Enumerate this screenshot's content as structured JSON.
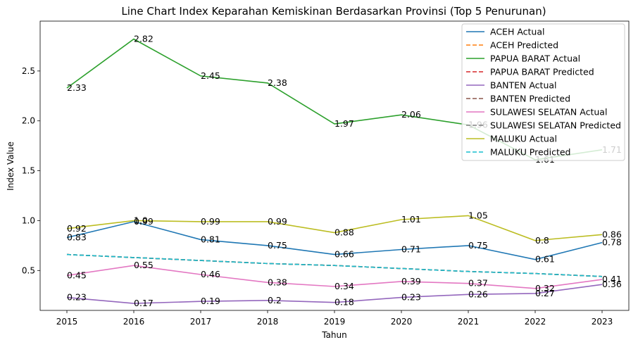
{
  "chart_data": {
    "type": "line",
    "title": "Line Chart Index Keparahan Kemiskinan Berdasarkan Provinsi (Top 5 Penurunan)",
    "xlabel": "Tahun",
    "ylabel": "Index Value",
    "x": [
      2015,
      2016,
      2017,
      2018,
      2019,
      2020,
      2021,
      2022,
      2023
    ],
    "ylim": [
      0.1,
      3.0
    ],
    "yticks": [
      0.5,
      1.0,
      1.5,
      2.0,
      2.5
    ],
    "ytick_labels": [
      "0.5",
      "1.0",
      "1.5",
      "2.0",
      "2.5"
    ],
    "xtick_labels": [
      "2015",
      "2016",
      "2017",
      "2018",
      "2019",
      "2020",
      "2021",
      "2022",
      "2023"
    ],
    "legend_position": "top-right",
    "series": [
      {
        "name": "ACEH Actual",
        "style": "solid",
        "color": "#1f77b4",
        "values": [
          0.83,
          0.99,
          0.81,
          0.75,
          0.66,
          0.71,
          0.75,
          0.61,
          0.78
        ],
        "labels": [
          "0.83",
          "0.99",
          "0.81",
          "0.75",
          "0.66",
          "0.71",
          "0.75",
          "0.61",
          "0.78"
        ]
      },
      {
        "name": "ACEH Predicted",
        "style": "dashed",
        "color": "#ff7f0e",
        "values": [
          0.66,
          0.63,
          0.6,
          0.57,
          0.55,
          0.52,
          0.49,
          0.47,
          0.44
        ]
      },
      {
        "name": "PAPUA BARAT Actual",
        "style": "solid",
        "color": "#2ca02c",
        "values": [
          2.33,
          2.82,
          2.45,
          2.38,
          1.97,
          2.06,
          1.96,
          1.61,
          1.71
        ],
        "labels": [
          "2.33",
          "2.82",
          "2.45",
          "2.38",
          "1.97",
          "2.06",
          "1.96",
          "1.61",
          "1.71"
        ]
      },
      {
        "name": "PAPUA BARAT Predicted",
        "style": "dashed",
        "color": "#d62728",
        "values": [
          0.66,
          0.63,
          0.6,
          0.57,
          0.55,
          0.52,
          0.49,
          0.47,
          0.44
        ]
      },
      {
        "name": "BANTEN Actual",
        "style": "solid",
        "color": "#9467bd",
        "values": [
          0.23,
          0.17,
          0.19,
          0.2,
          0.18,
          0.23,
          0.26,
          0.27,
          0.36
        ],
        "labels": [
          "0.23",
          "0.17",
          "0.19",
          "0.2",
          "0.18",
          "0.23",
          "0.26",
          "0.27",
          "0.36"
        ]
      },
      {
        "name": "BANTEN Predicted",
        "style": "dashed",
        "color": "#8c564b",
        "values": [
          0.66,
          0.63,
          0.6,
          0.57,
          0.55,
          0.52,
          0.49,
          0.47,
          0.44
        ]
      },
      {
        "name": "SULAWESI SELATAN Actual",
        "style": "solid",
        "color": "#e377c2",
        "values": [
          0.45,
          0.55,
          0.46,
          0.38,
          0.34,
          0.39,
          0.37,
          0.32,
          0.41
        ],
        "labels": [
          "0.45",
          "0.55",
          "0.46",
          "0.38",
          "0.34",
          "0.39",
          "0.37",
          "0.32",
          "0.41"
        ]
      },
      {
        "name": "SULAWESI SELATAN Predicted",
        "style": "dashed",
        "color": "#7f7f7f",
        "values": [
          0.66,
          0.63,
          0.6,
          0.57,
          0.55,
          0.52,
          0.49,
          0.47,
          0.44
        ]
      },
      {
        "name": "MALUKU Actual",
        "style": "solid",
        "color": "#bcbd22",
        "values": [
          0.92,
          1.0,
          0.99,
          0.99,
          0.88,
          1.01,
          1.05,
          0.8,
          0.86
        ],
        "labels": [
          "0.92",
          "1.0",
          "0.99",
          "0.99",
          "0.88",
          "1.01",
          "1.05",
          "0.8",
          "0.86"
        ]
      },
      {
        "name": "MALUKU Predicted",
        "style": "dashed",
        "color": "#17becf",
        "values": [
          0.66,
          0.63,
          0.6,
          0.57,
          0.55,
          0.52,
          0.49,
          0.47,
          0.44
        ]
      }
    ]
  }
}
